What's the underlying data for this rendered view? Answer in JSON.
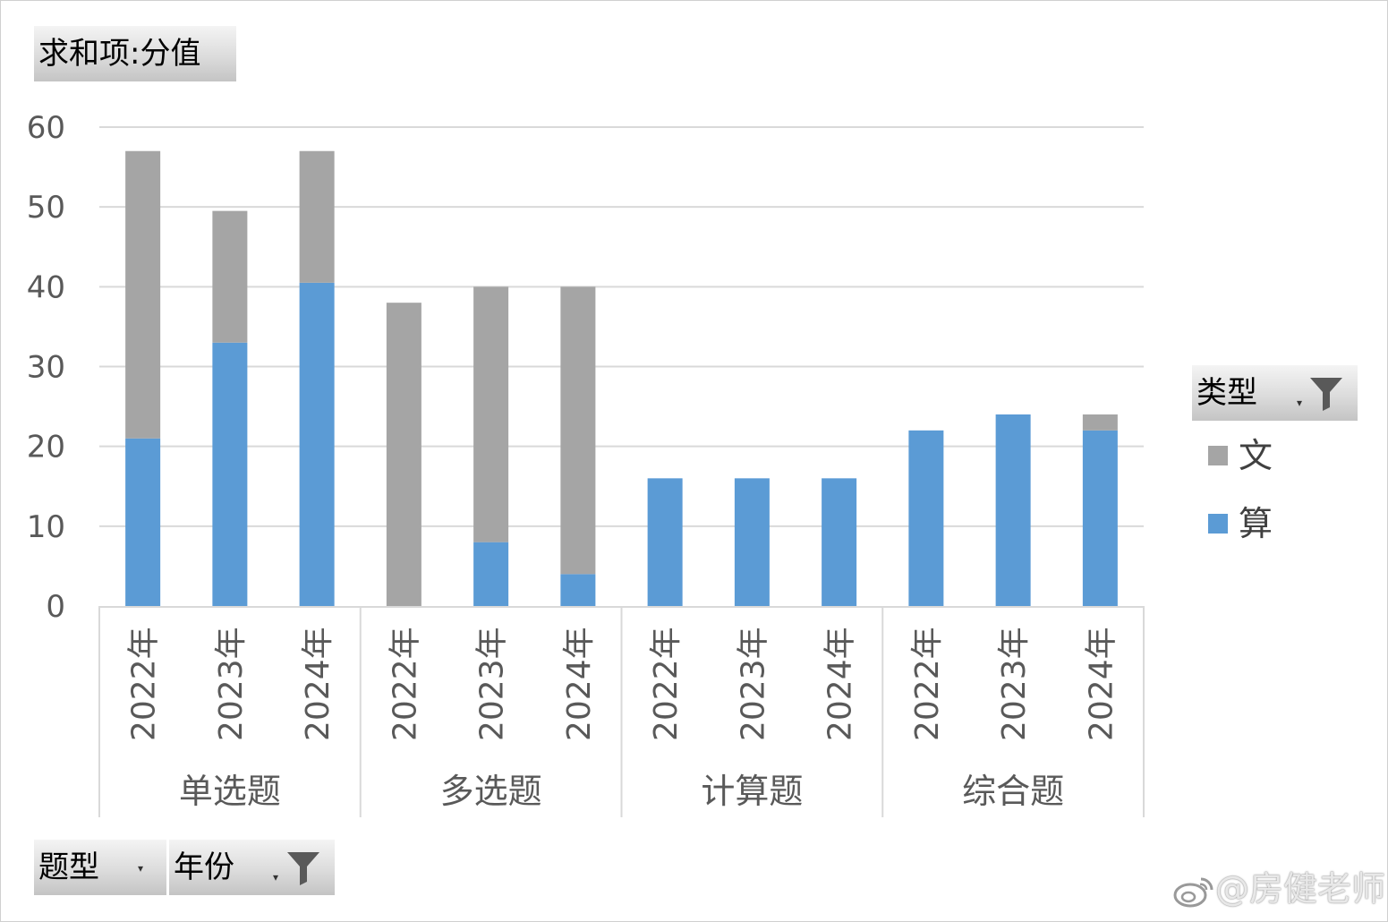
{
  "value_field_button": "求和项:分值",
  "legend_field_button": "类型",
  "axis_field_buttons": [
    "题型",
    "年份"
  ],
  "watermark": "@房健老师",
  "icons": {
    "filter": "filter-funnel-icon",
    "dropdown": "dropdown-arrow-icon",
    "watermark": "weibo-logo-icon"
  },
  "colors": {
    "文": "#a5a5a5",
    "算": "#5b9bd5",
    "gridline": "#d9d9d9",
    "axis_text": "#595959"
  },
  "chart_data": {
    "type": "bar",
    "stacked": true,
    "ylim": [
      0,
      60
    ],
    "yticks": [
      0,
      10,
      20,
      30,
      40,
      50,
      60
    ],
    "grid": true,
    "legend_position": "right",
    "groups": [
      {
        "name": "单选题",
        "categories": [
          "2022年",
          "2023年",
          "2024年"
        ]
      },
      {
        "name": "多选题",
        "categories": [
          "2022年",
          "2023年",
          "2024年"
        ]
      },
      {
        "name": "计算题",
        "categories": [
          "2022年",
          "2023年",
          "2024年"
        ]
      },
      {
        "name": "综合题",
        "categories": [
          "2022年",
          "2023年",
          "2024年"
        ]
      }
    ],
    "series": [
      {
        "name": "算",
        "values": [
          21,
          33,
          40.5,
          0,
          8,
          4,
          16,
          16,
          16,
          22,
          24,
          22
        ]
      },
      {
        "name": "文",
        "values": [
          36,
          16.5,
          16.5,
          38,
          32,
          36,
          0,
          0,
          0,
          0,
          0,
          2
        ]
      }
    ]
  }
}
